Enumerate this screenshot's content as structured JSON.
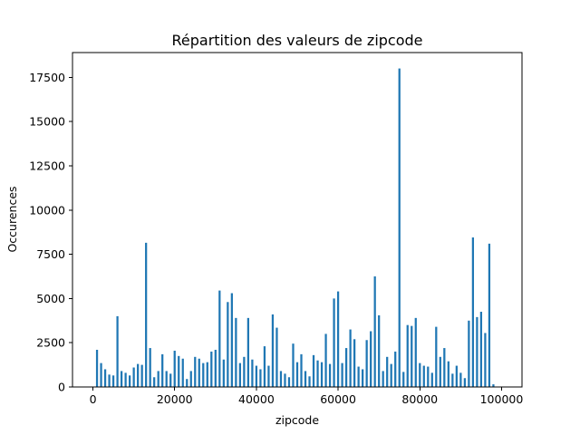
{
  "chart_data": {
    "type": "bar",
    "title": "Répartition des valeurs de zipcode",
    "xlabel": "zipcode",
    "ylabel": "Occurences",
    "xlim": [
      -5000,
      105000
    ],
    "ylim": [
      0,
      18900
    ],
    "xticks": [
      0,
      20000,
      40000,
      60000,
      80000,
      100000
    ],
    "xtick_labels": [
      "0",
      "20000",
      "40000",
      "60000",
      "80000",
      "100000"
    ],
    "yticks": [
      0,
      2500,
      5000,
      7500,
      10000,
      12500,
      15000,
      17500
    ],
    "ytick_labels": [
      "0",
      "2500",
      "5000",
      "7500",
      "10000",
      "12500",
      "15000",
      "17500"
    ],
    "grid": false,
    "color": "#1f77b4",
    "bar_width": 500,
    "x": [
      1000,
      2000,
      3000,
      4000,
      5000,
      6000,
      7000,
      8000,
      9000,
      10000,
      11000,
      12000,
      13000,
      14000,
      15000,
      16000,
      17000,
      18000,
      19000,
      20000,
      21000,
      22000,
      23000,
      24000,
      25000,
      26000,
      27000,
      28000,
      29000,
      30000,
      31000,
      32000,
      33000,
      34000,
      35000,
      36000,
      37000,
      38000,
      39000,
      40000,
      41000,
      42000,
      43000,
      44000,
      45000,
      46000,
      47000,
      48000,
      49000,
      50000,
      51000,
      52000,
      53000,
      54000,
      55000,
      56000,
      57000,
      58000,
      59000,
      60000,
      61000,
      62000,
      63000,
      64000,
      65000,
      66000,
      67000,
      68000,
      69000,
      70000,
      71000,
      72000,
      73000,
      74000,
      75000,
      76000,
      77000,
      78000,
      79000,
      80000,
      81000,
      82000,
      83000,
      84000,
      85000,
      86000,
      87000,
      88000,
      89000,
      90000,
      91000,
      92000,
      93000,
      94000,
      95000,
      96000,
      97000,
      98000
    ],
    "values": [
      2100,
      1350,
      1000,
      700,
      650,
      4000,
      900,
      800,
      650,
      1100,
      1300,
      1250,
      8150,
      2200,
      550,
      900,
      1850,
      900,
      750,
      2050,
      1750,
      1600,
      450,
      900,
      1700,
      1600,
      1350,
      1400,
      2000,
      2100,
      5450,
      1550,
      4800,
      5300,
      3900,
      1350,
      1700,
      3900,
      1550,
      1200,
      1000,
      2300,
      1200,
      4100,
      3350,
      900,
      750,
      550,
      2450,
      1400,
      1850,
      900,
      600,
      1800,
      1500,
      1400,
      3000,
      1300,
      5000,
      5400,
      1350,
      2200,
      3250,
      2700,
      1150,
      1000,
      2650,
      3150,
      6250,
      4050,
      900,
      1700,
      1300,
      2000,
      18000,
      850,
      3500,
      3450,
      3900,
      1350,
      1200,
      1150,
      800,
      3400,
      1700,
      2200,
      1450,
      750,
      1200,
      800,
      500,
      3750,
      8450,
      3950,
      4250,
      3050,
      8100,
      150
    ]
  }
}
